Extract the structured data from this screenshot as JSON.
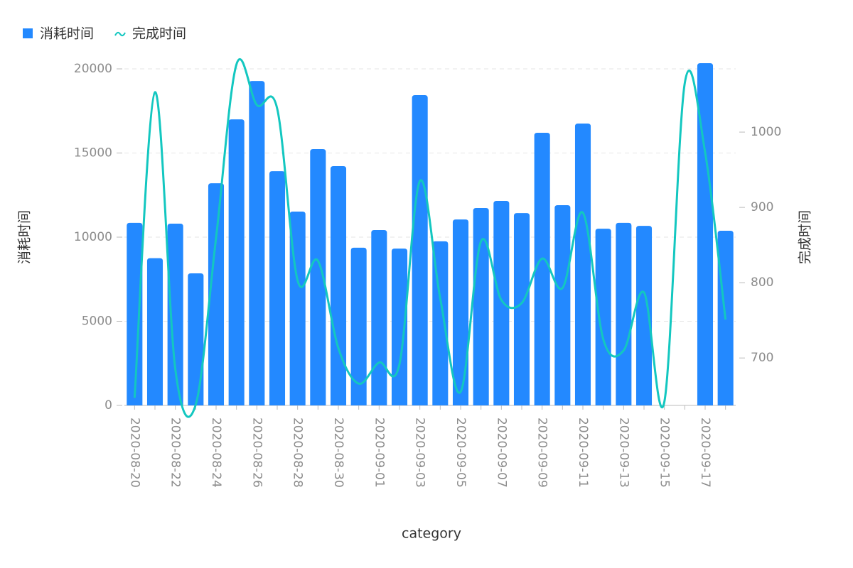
{
  "chart_data": {
    "type": "bar",
    "categories": [
      "2020-08-20",
      null,
      "2020-08-22",
      null,
      "2020-08-24",
      null,
      "2020-08-26",
      null,
      "2020-08-28",
      null,
      "2020-08-30",
      null,
      "2020-09-01",
      null,
      "2020-09-03",
      null,
      "2020-09-05",
      null,
      "2020-09-07",
      null,
      "2020-09-09",
      null,
      "2020-09-11",
      null,
      "2020-09-13",
      null,
      "2020-09-15",
      null,
      "2020-09-17",
      null
    ],
    "series": [
      {
        "name": "消耗时间",
        "type": "bar",
        "color": "#2389ff",
        "axis": "y",
        "values": [
          10850,
          8750,
          10800,
          7850,
          13200,
          17000,
          19280,
          13920,
          11520,
          15230,
          14220,
          9370,
          10420,
          9320,
          18440,
          9750,
          11050,
          11730,
          12150,
          11430,
          16200,
          11900,
          16750,
          10500,
          10850,
          10670,
          null,
          null,
          20340,
          10380
        ]
      },
      {
        "name": "完成时间",
        "type": "line",
        "color": "#13c7c0",
        "axis": "y2",
        "values": [
          647,
          1053,
          685,
          638,
          860,
          1090,
          1036,
          1031,
          803,
          829,
          713,
          666,
          694,
          692,
          935,
          779,
          655,
          855,
          777,
          773,
          832,
          793,
          893,
          725,
          710,
          787,
          642,
          1065,
          973,
          751
        ]
      }
    ],
    "x_label": "category",
    "y_label": "消耗时间",
    "y2_label": "完成时间",
    "ylim": [
      0,
      20000
    ],
    "yticks": [
      0,
      5000,
      10000,
      15000,
      20000
    ],
    "y2lim": [
      637,
      1084
    ],
    "y2ticks": [
      700,
      800,
      900,
      1000
    ],
    "grid": true,
    "legend": "top-left"
  }
}
